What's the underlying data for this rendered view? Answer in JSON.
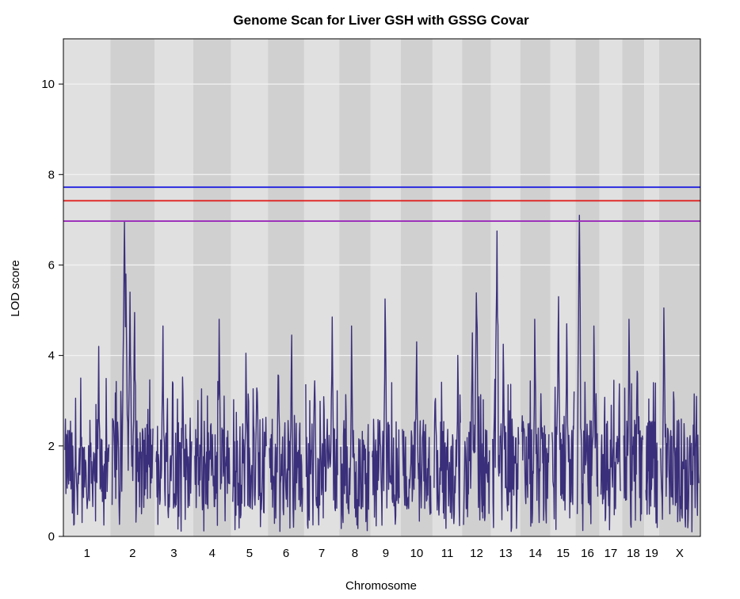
{
  "chart_data": {
    "type": "line",
    "title": "Genome Scan for Liver GSH with GSSG Covar",
    "xlabel": "Chromosome",
    "ylabel": "LOD score",
    "ylim": [
      0,
      11
    ],
    "y_ticks": [
      0,
      2,
      4,
      6,
      8,
      10
    ],
    "grid": true,
    "background_colors": {
      "light": "#e0e0e0",
      "dark": "#d0d0d0",
      "grid": "#f2f2f2"
    },
    "chromosomes": [
      {
        "label": "1",
        "length": 195
      },
      {
        "label": "2",
        "length": 182
      },
      {
        "label": "3",
        "length": 160
      },
      {
        "label": "4",
        "length": 157
      },
      {
        "label": "5",
        "length": 152
      },
      {
        "label": "6",
        "length": 150
      },
      {
        "label": "7",
        "length": 145
      },
      {
        "label": "8",
        "length": 130
      },
      {
        "label": "9",
        "length": 125
      },
      {
        "label": "10",
        "length": 131
      },
      {
        "label": "11",
        "length": 122
      },
      {
        "label": "12",
        "length": 120
      },
      {
        "label": "13",
        "length": 121
      },
      {
        "label": "14",
        "length": 125
      },
      {
        "label": "15",
        "length": 104
      },
      {
        "label": "16",
        "length": 98
      },
      {
        "label": "17",
        "length": 95
      },
      {
        "label": "18",
        "length": 91
      },
      {
        "label": "19",
        "length": 61
      },
      {
        "label": "X",
        "length": 171
      }
    ],
    "series_color": "#3a2f7a",
    "series_peaks": [
      {
        "chr": "1",
        "pos": 70,
        "lod": 3.5
      },
      {
        "chr": "1",
        "pos": 150,
        "lod": 4.2
      },
      {
        "chr": "2",
        "pos": 55,
        "lod": 6.95
      },
      {
        "chr": "2",
        "pos": 62,
        "lod": 5.8
      },
      {
        "chr": "2",
        "pos": 80,
        "lod": 5.4
      },
      {
        "chr": "2",
        "pos": 100,
        "lod": 4.95
      },
      {
        "chr": "3",
        "pos": 30,
        "lod": 4.65
      },
      {
        "chr": "3",
        "pos": 120,
        "lod": 4.1
      },
      {
        "chr": "4",
        "pos": 110,
        "lod": 4.8
      },
      {
        "chr": "5",
        "pos": 60,
        "lod": 4.05
      },
      {
        "chr": "5",
        "pos": 110,
        "lod": 4.15
      },
      {
        "chr": "6",
        "pos": 40,
        "lod": 4.5
      },
      {
        "chr": "6",
        "pos": 100,
        "lod": 4.45
      },
      {
        "chr": "7",
        "pos": 40,
        "lod": 4.25
      },
      {
        "chr": "7",
        "pos": 120,
        "lod": 4.85
      },
      {
        "chr": "8",
        "pos": 50,
        "lod": 4.65
      },
      {
        "chr": "9",
        "pos": 60,
        "lod": 5.25
      },
      {
        "chr": "10",
        "pos": 65,
        "lod": 4.3
      },
      {
        "chr": "11",
        "pos": 5,
        "lod": 3.9
      },
      {
        "chr": "11",
        "pos": 110,
        "lod": 4.0
      },
      {
        "chr": "12",
        "pos": 60,
        "lod": 6.0
      },
      {
        "chr": "12",
        "pos": 40,
        "lod": 4.5
      },
      {
        "chr": "13",
        "pos": 20,
        "lod": 6.75
      },
      {
        "chr": "13",
        "pos": 50,
        "lod": 4.25
      },
      {
        "chr": "14",
        "pos": 60,
        "lod": 4.8
      },
      {
        "chr": "15",
        "pos": 30,
        "lod": 5.3
      },
      {
        "chr": "15",
        "pos": 70,
        "lod": 4.7
      },
      {
        "chr": "16",
        "pos": 10,
        "lod": 7.1
      },
      {
        "chr": "16",
        "pos": 80,
        "lod": 4.65
      },
      {
        "chr": "17",
        "pos": 50,
        "lod": 2.9
      },
      {
        "chr": "18",
        "pos": 25,
        "lod": 4.8
      },
      {
        "chr": "18",
        "pos": 65,
        "lod": 4.3
      },
      {
        "chr": "19",
        "pos": 40,
        "lod": 3.4
      },
      {
        "chr": "X",
        "pos": 15,
        "lod": 5.05
      },
      {
        "chr": "X",
        "pos": 150,
        "lod": 3.15
      }
    ],
    "thresholds": [
      {
        "value": 7.72,
        "color": "#1515e0"
      },
      {
        "value": 7.42,
        "color": "#e01515"
      },
      {
        "value": 6.97,
        "color": "#9a2ab8"
      }
    ]
  }
}
